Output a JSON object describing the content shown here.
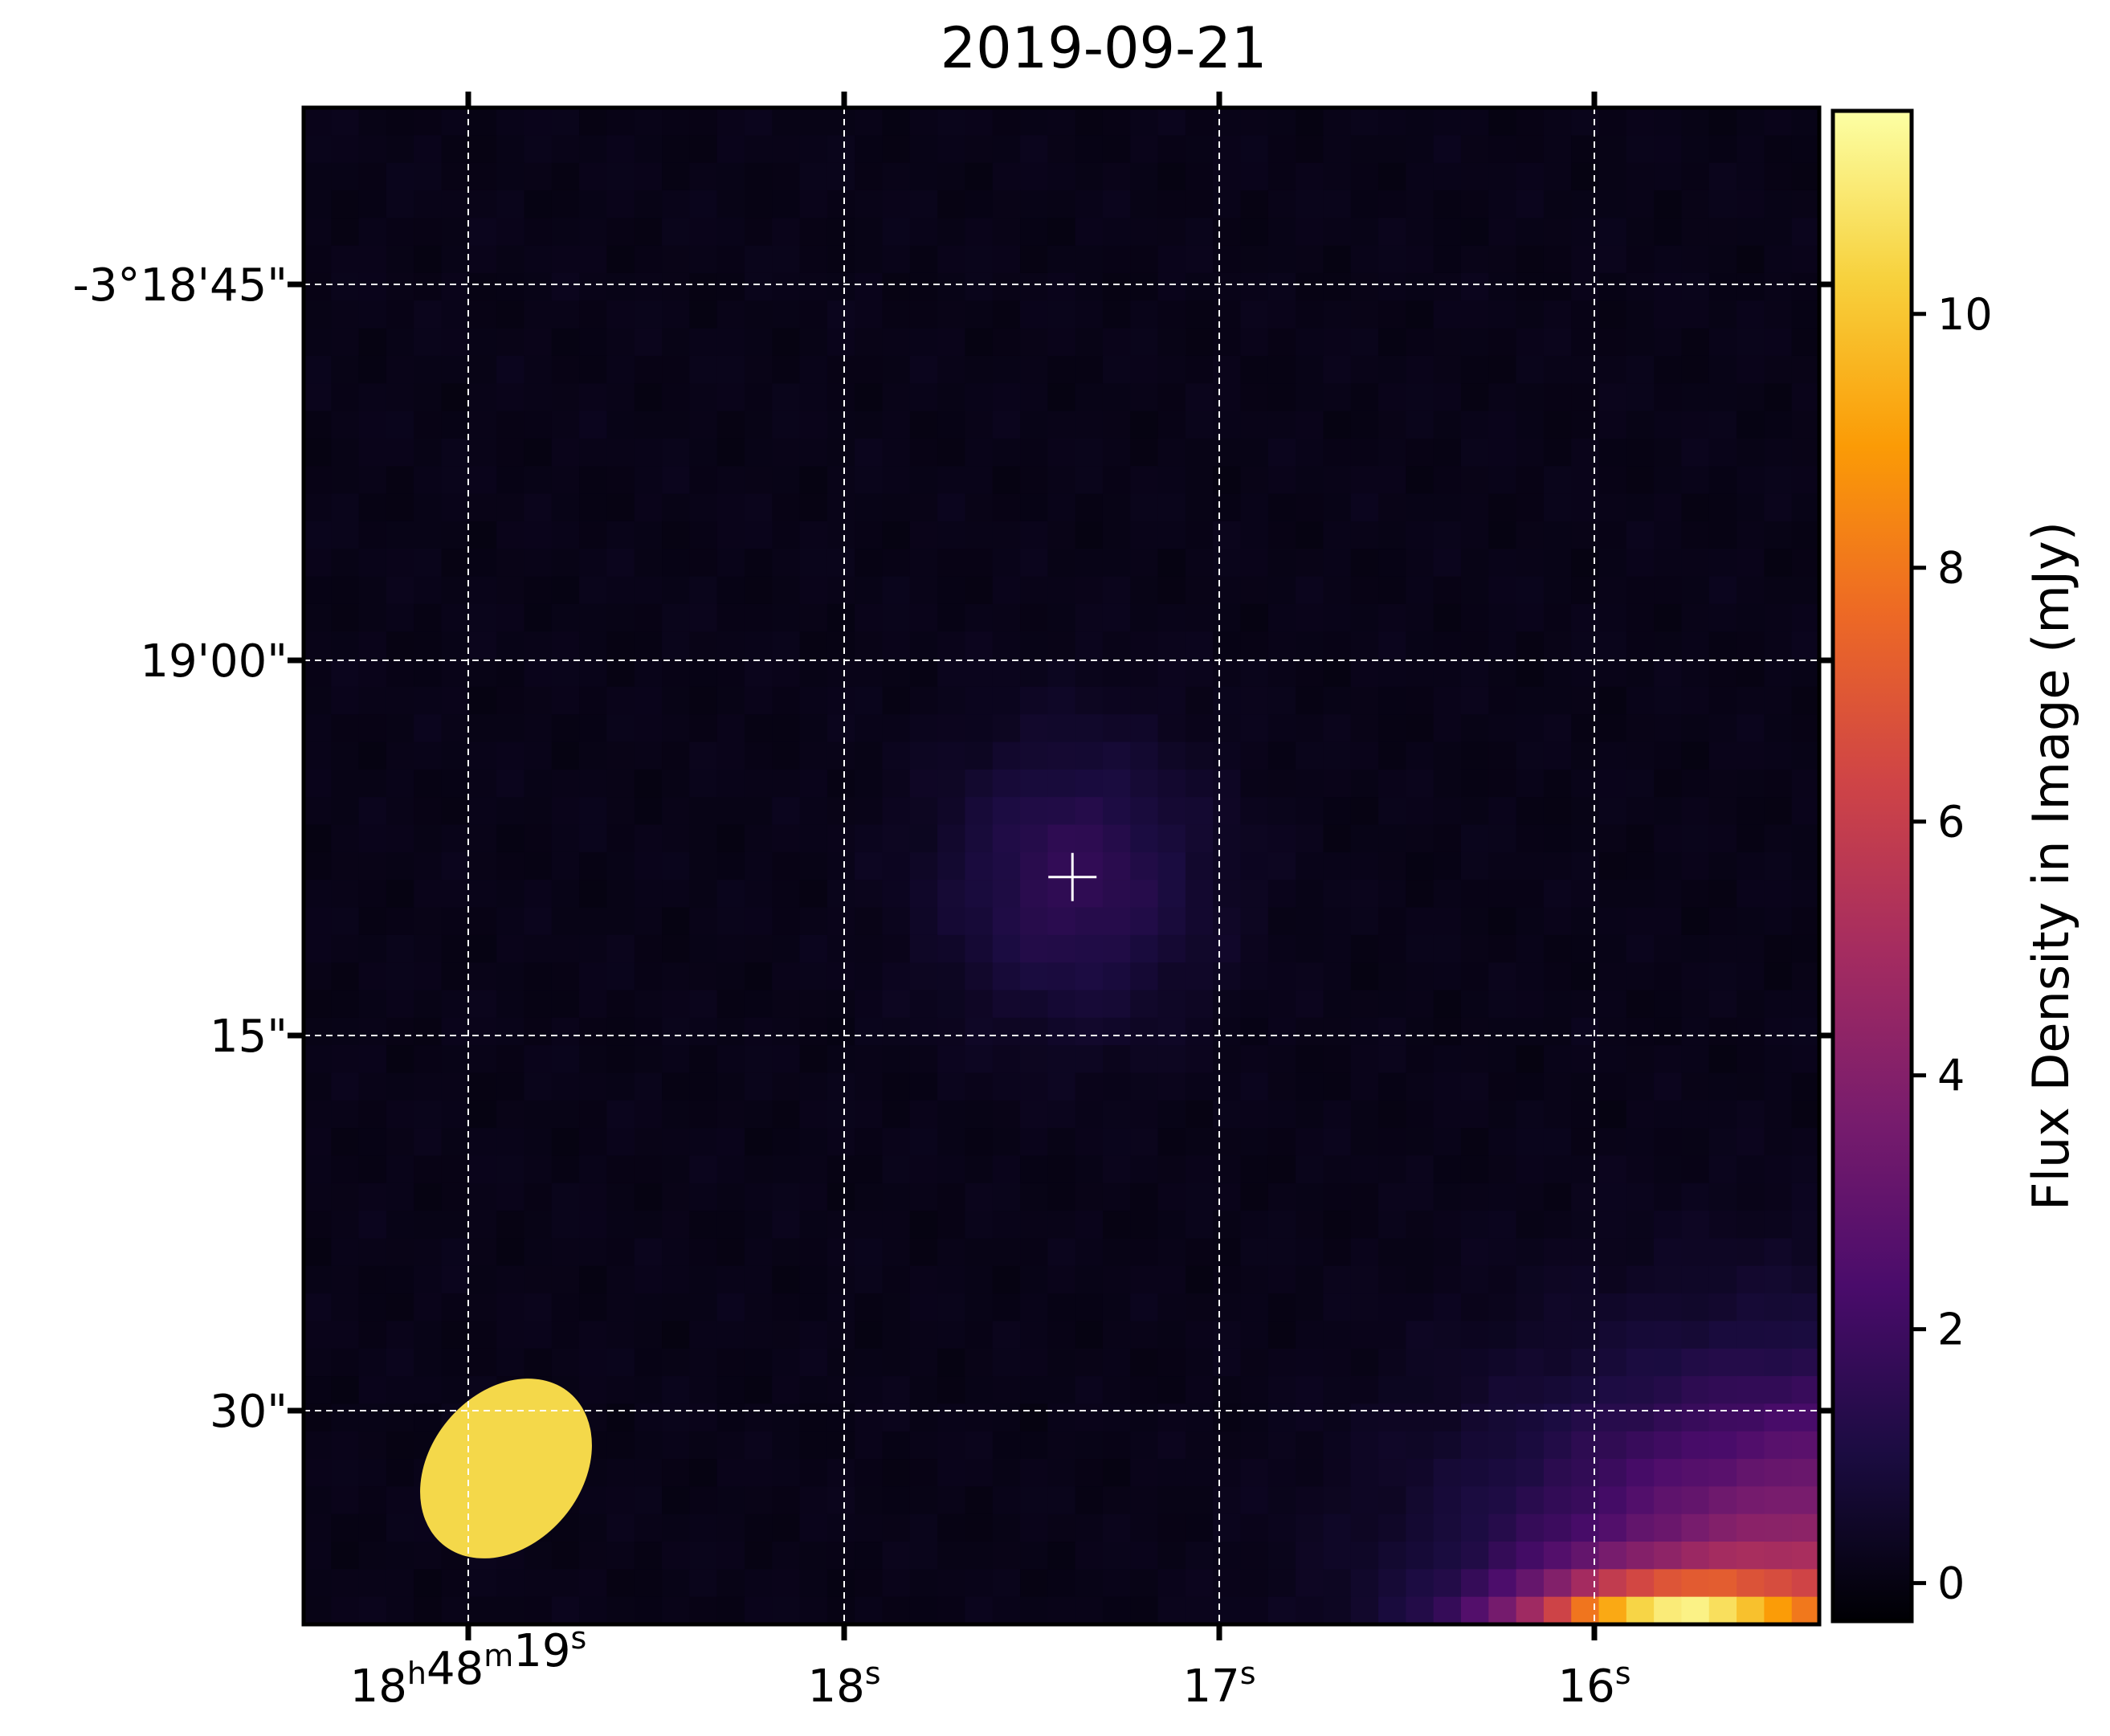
{
  "chart_data": {
    "type": "heatmap",
    "title": "2019-09-21",
    "colormap": "inferno",
    "x_axis": {
      "coordinate": "right ascension",
      "ticks": [
        {
          "value": "18h48m19s",
          "parts": [
            {
              "t": "18",
              "sup": "h"
            },
            {
              "t": "48",
              "sup": "m"
            },
            {
              "t": "19",
              "sup": "s"
            }
          ]
        },
        {
          "value": "18s",
          "parts": [
            {
              "t": "18",
              "sup": "s"
            }
          ]
        },
        {
          "value": "17s",
          "parts": [
            {
              "t": "17",
              "sup": "s"
            }
          ]
        },
        {
          "value": "16s",
          "parts": [
            {
              "t": "16",
              "sup": "s"
            }
          ]
        }
      ]
    },
    "y_axis": {
      "coordinate": "declination",
      "tick_labels": [
        "-3°18'45\"",
        "19'00\"",
        "15\"",
        "30\""
      ]
    },
    "colorbar": {
      "label": "Flux Density in Image (mJy)",
      "range": [
        -0.3,
        11.6
      ],
      "tick_labels": [
        "0",
        "2",
        "4",
        "6",
        "8",
        "10"
      ],
      "tick_values": [
        0,
        2,
        4,
        6,
        8,
        10
      ]
    },
    "grid": true,
    "grid_style": "dashed white",
    "sources": [
      {
        "name": "target",
        "marker": "cross",
        "peak_flux_mJy": 1.6
      }
    ],
    "bright_source": {
      "location": "bottom-right",
      "peak_flux_mJy": 11.6
    },
    "beam": {
      "color": "#f4d84a",
      "location": "bottom-left"
    }
  },
  "colors": {
    "cmap_stops": [
      "#000004",
      "#1b0c41",
      "#4a0c6b",
      "#781c6d",
      "#a52c60",
      "#cf4446",
      "#ed6925",
      "#fb9b06",
      "#f7d13d",
      "#fcffa4"
    ],
    "beam": "#f4d84a",
    "grid": "#ffffff",
    "marker": "#ffffff"
  }
}
